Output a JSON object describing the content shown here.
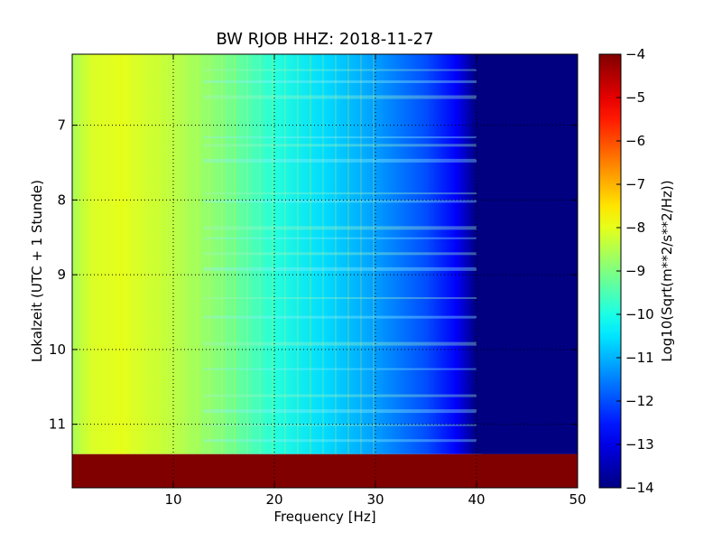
{
  "chart_data": {
    "type": "heatmap",
    "title": "BW RJOB HHZ: 2018-11-27",
    "xlabel": "Frequency [Hz]",
    "ylabel": "Lokalzeit (UTC + 1 Stunde)",
    "xlim": [
      0,
      50
    ],
    "ylim_top_to_bottom": [
      6.05,
      11.85
    ],
    "x_ticks": [
      10,
      20,
      30,
      40,
      50
    ],
    "x_tick_labels": [
      "10",
      "20",
      "30",
      "40",
      "50"
    ],
    "y_ticks": [
      7,
      8,
      9,
      10,
      11
    ],
    "y_tick_labels": [
      "7",
      "8",
      "9",
      "10",
      "11"
    ],
    "grid": true,
    "colormap": "jet",
    "colorbar": {
      "label": "Log10(Sqrt(m**2/s**2/Hz))",
      "range": [
        -14,
        -4
      ],
      "ticks": [
        -4,
        -5,
        -6,
        -7,
        -8,
        -9,
        -10,
        -11,
        -12,
        -13,
        -14
      ],
      "tick_labels": [
        "−4",
        "−5",
        "−6",
        "−7",
        "−8",
        "−9",
        "−10",
        "−11",
        "−12",
        "−13",
        "−14"
      ]
    },
    "approx_level_by_frequency": {
      "frequency_hz": [
        0,
        2,
        5,
        10,
        15,
        20,
        25,
        30,
        35,
        38,
        40,
        50
      ],
      "value": [
        -8.6,
        -8.1,
        -8.0,
        -8.4,
        -9.0,
        -9.9,
        -10.6,
        -11.2,
        -12.0,
        -12.8,
        -14.0,
        -14.0
      ]
    },
    "no_data_after_hour": 11.4,
    "no_data_value": -4
  }
}
